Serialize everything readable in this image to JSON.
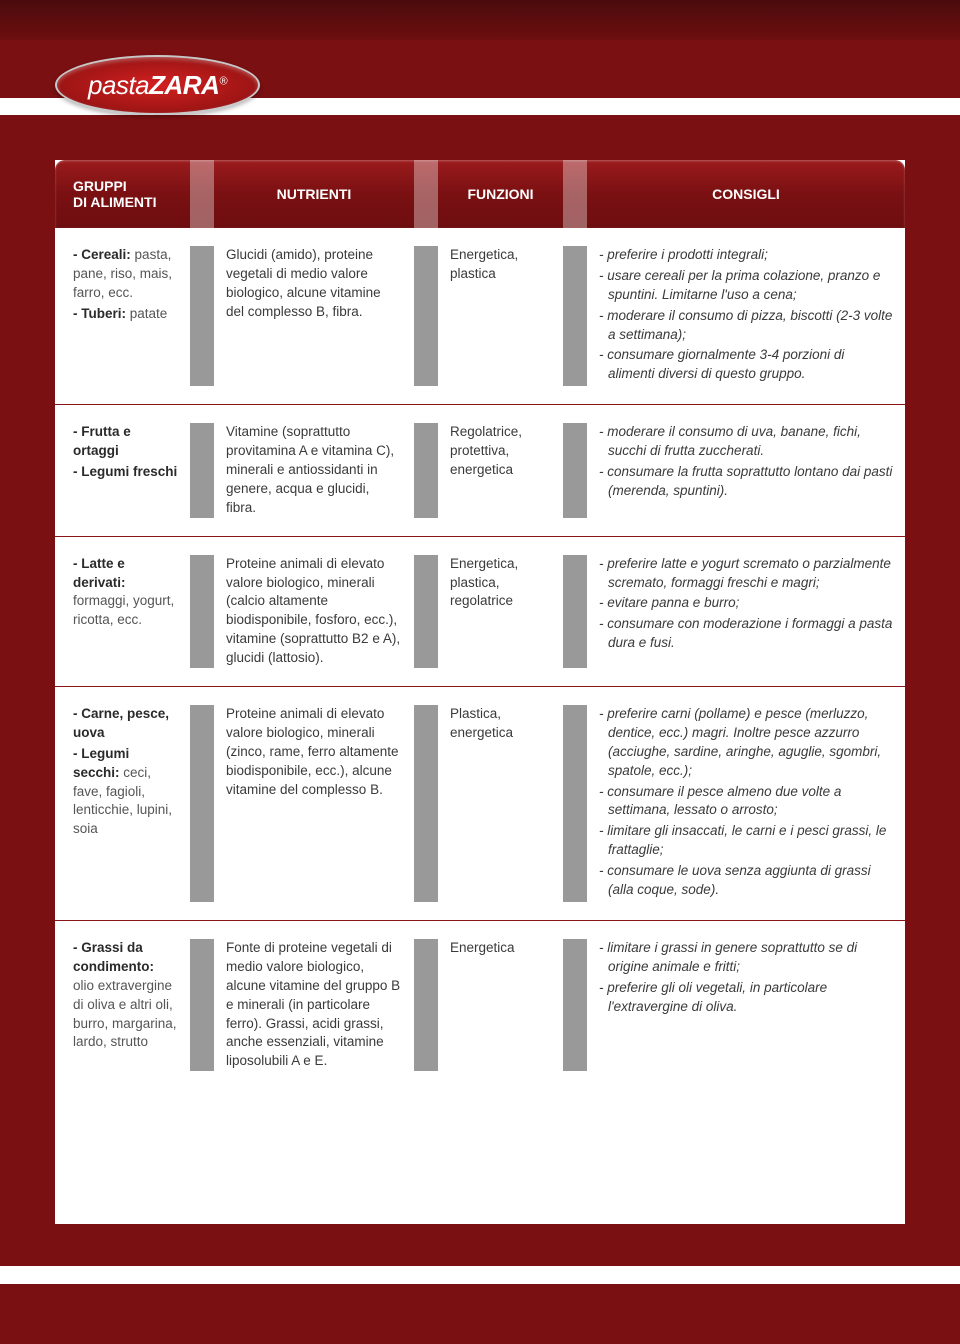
{
  "logo": {
    "brand_light": "pasta",
    "brand_bold": "ZARA",
    "registered": "®"
  },
  "colors": {
    "page_bg": "#7a1012",
    "header_grad_top": "#9b1b1d",
    "header_grad_bottom": "#6e0e10",
    "row_border": "#8a1618",
    "text": "#3a3a3a",
    "bold_text": "#2a2a2a"
  },
  "columns": [
    "GRUPPI DI ALIMENTI",
    "NUTRIENTI",
    "FUNZIONI",
    "CONSIGLI"
  ],
  "rows": [
    {
      "gruppi": [
        {
          "main": "- Cereali:",
          "sub": "pasta, pane, riso, mais, farro, ecc."
        },
        {
          "main": "- Tuberi:",
          "sub": "patate"
        }
      ],
      "nutrienti": "Glucidi (amido), proteine vegetali di medio valore biologico, alcune vitamine del complesso B, fibra.",
      "funzioni": "Energetica, plastica",
      "consigli": [
        "- preferire i prodotti integrali;",
        "- usare cereali per la prima colazione, pranzo e spuntini. Limitarne l'uso a cena;",
        "- moderare il consumo di pizza, biscotti (2-3 volte a settimana);",
        "- consumare giornalmente 3-4 porzioni di alimenti diversi di questo gruppo."
      ]
    },
    {
      "gruppi": [
        {
          "main": "- Frutta e ortaggi",
          "sub": ""
        },
        {
          "main": "- Legumi freschi",
          "sub": ""
        }
      ],
      "nutrienti": "Vitamine (soprattutto provitamina A e vitamina C), minerali e antiossidanti in genere, acqua e glucidi, fibra.",
      "funzioni": "Regolatrice, protettiva, energetica",
      "consigli": [
        "- moderare il consumo di uva, banane, fichi, succhi di frutta zuccherati.",
        "- consumare la frutta soprattutto lontano dai pasti (merenda, spuntini)."
      ]
    },
    {
      "gruppi": [
        {
          "main": "- Latte e derivati:",
          "sub": "formaggi, yogurt, ricotta, ecc."
        }
      ],
      "nutrienti": "Proteine animali di elevato valore biologico, minerali (calcio altamente biodisponibile, fosforo, ecc.), vitamine (soprattutto B2 e A), glucidi (lattosio).",
      "funzioni": "Energetica, plastica, regolatrice",
      "consigli": [
        "- preferire latte e yogurt scremato o parzialmente scremato, formaggi freschi e magri;",
        "- evitare panna e burro;",
        "- consumare con moderazione i formaggi a pasta dura e fusi."
      ]
    },
    {
      "gruppi": [
        {
          "main": "- Carne, pesce, uova",
          "sub": ""
        },
        {
          "main": "- Legumi secchi:",
          "sub": "ceci, fave, fagioli, lenticchie, lupini, soia"
        }
      ],
      "nutrienti": "Proteine animali di elevato valore biologico, minerali (zinco, rame, ferro altamente biodisponibile, ecc.), alcune vitamine del complesso B.",
      "funzioni": "Plastica, energetica",
      "consigli": [
        "- preferire carni (pollame) e pesce (merluzzo, dentice, ecc.) magri. Inoltre pesce azzurro (acciughe, sardine, aringhe, aguglie, sgombri, spatole, ecc.);",
        "- consumare il pesce almeno due volte a settimana, lessato o arrosto;",
        "- limitare gli insaccati, le carni e i pesci grassi, le frattaglie;",
        "- consumare le uova senza aggiunta di grassi (alla coque, sode)."
      ]
    },
    {
      "gruppi": [
        {
          "main": "- Grassi da condimento:",
          "sub": "olio extravergine di oliva e altri oli, burro, margarina, lardo, strutto"
        }
      ],
      "nutrienti": "Fonte di proteine vegetali di medio valore biologico, alcune vitamine del gruppo B e minerali (in particolare ferro). Grassi, acidi grassi, anche essenziali, vitamine liposolubili A e E.",
      "funzioni": "Energetica",
      "consigli": [
        "- limitare i grassi in genere soprattutto se di origine animale e fritti;",
        "- preferire gli oli vegetali, in particolare l'extravergine di oliva."
      ]
    }
  ]
}
